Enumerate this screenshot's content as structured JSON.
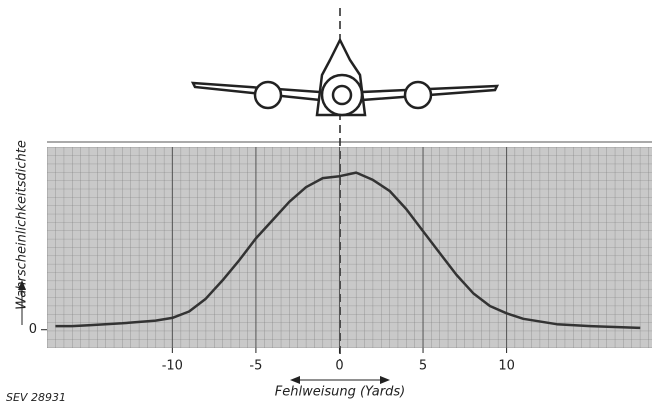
{
  "chart_data": {
    "type": "line",
    "y_label": "Wahrscheinlichkeitsdichte",
    "x_label": "Fehlweisung (Yards)",
    "source": "SEV 28931",
    "x": [
      -17,
      -16,
      -15,
      -13,
      -11,
      -10,
      -9,
      -8,
      -7,
      -6,
      -5,
      -4,
      -3,
      -2,
      -1,
      0,
      1,
      2,
      3,
      4,
      5,
      6,
      7,
      8,
      9,
      10,
      11,
      13,
      15,
      18
    ],
    "values": [
      0.02,
      0.02,
      0.025,
      0.035,
      0.05,
      0.065,
      0.1,
      0.17,
      0.27,
      0.38,
      0.5,
      0.6,
      0.7,
      0.78,
      0.83,
      0.84,
      0.86,
      0.82,
      0.76,
      0.66,
      0.54,
      0.42,
      0.3,
      0.2,
      0.13,
      0.09,
      0.06,
      0.03,
      0.02,
      0.01
    ],
    "color": "#333333",
    "xlim": [
      -17.5,
      18.7
    ],
    "ylim": [
      -0.1,
      1.0
    ],
    "xticks": [
      -10,
      -5,
      0,
      5,
      10
    ],
    "yticks": [
      0
    ],
    "grid": true
  }
}
